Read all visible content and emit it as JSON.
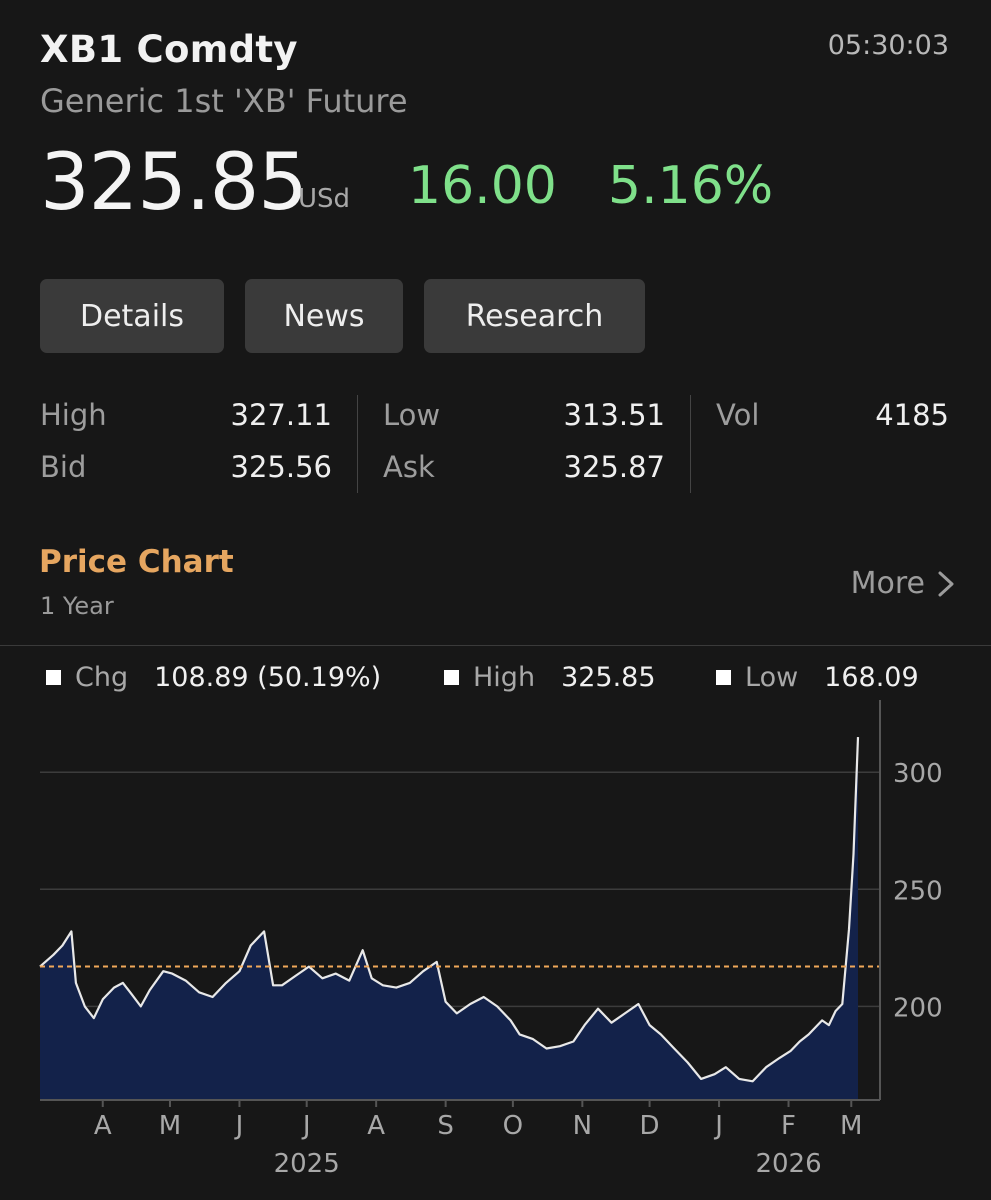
{
  "header": {
    "ticker": "XB1 Comdty",
    "name": "Generic 1st 'XB' Future",
    "time": "05:30:03"
  },
  "quote": {
    "last": "325.85",
    "currency": "USd",
    "net_change": "16.00",
    "pct_change": "5.16%",
    "change_color": "#7fe08a"
  },
  "tabs": [
    {
      "label": "Details"
    },
    {
      "label": "News"
    },
    {
      "label": "Research"
    }
  ],
  "stats": {
    "high_label": "High",
    "high": "327.11",
    "low_label": "Low",
    "low": "313.51",
    "vol_label": "Vol",
    "vol": "4185",
    "bid_label": "Bid",
    "bid": "325.56",
    "ask_label": "Ask",
    "ask": "325.87"
  },
  "price_chart": {
    "title": "Price Chart",
    "range": "1 Year",
    "more_label": "More",
    "more_icon": "chevron-right-icon",
    "accent_color": "#e6a660"
  },
  "legend": {
    "chg_label": "Chg",
    "chg_value": "108.89 (50.19%)",
    "high_label": "High",
    "high_value": "325.85",
    "low_label": "Low",
    "low_value": "168.09"
  },
  "chart_data": {
    "type": "area",
    "title": "",
    "xlabel": "",
    "ylabel": "",
    "ylim": [
      160,
      330
    ],
    "yticks": [
      200,
      250,
      300
    ],
    "reference_line": 217,
    "reference_color": "#f0a85a",
    "fill_color": "#13224a",
    "line_color": "#e8e8e8",
    "grid": true,
    "x_tick_labels": [
      "A",
      "M",
      "J",
      "J",
      "A",
      "S",
      "O",
      "N",
      "D",
      "J",
      "F",
      "M"
    ],
    "year_labels": [
      "2025",
      "2026"
    ],
    "x_start": "2025-03-04",
    "x_end": "2026-03-04",
    "x_ticks": [
      "2025-04-01",
      "2025-05-01",
      "2025-06-01",
      "2025-07-01",
      "2025-08-01",
      "2025-09-01",
      "2025-10-01",
      "2025-11-01",
      "2025-12-01",
      "2026-01-01",
      "2026-02-01",
      "2026-03-01"
    ],
    "year_ticks": [
      "2025-07-01",
      "2026-02-01"
    ],
    "series": [
      {
        "x": [
          "2025-03-04",
          "2025-03-10",
          "2025-03-14",
          "2025-03-18",
          "2025-03-20",
          "2025-03-24",
          "2025-03-28",
          "2025-04-01",
          "2025-04-06",
          "2025-04-10",
          "2025-04-14",
          "2025-04-18",
          "2025-04-22",
          "2025-04-28",
          "2025-05-02",
          "2025-05-08",
          "2025-05-14",
          "2025-05-20",
          "2025-05-26",
          "2025-06-01",
          "2025-06-06",
          "2025-06-12",
          "2025-06-16",
          "2025-06-20",
          "2025-06-26",
          "2025-07-02",
          "2025-07-08",
          "2025-07-14",
          "2025-07-20",
          "2025-07-26",
          "2025-07-30",
          "2025-08-04",
          "2025-08-10",
          "2025-08-16",
          "2025-08-22",
          "2025-08-28",
          "2025-09-01",
          "2025-09-06",
          "2025-09-12",
          "2025-09-18",
          "2025-09-24",
          "2025-09-30",
          "2025-10-04",
          "2025-10-10",
          "2025-10-16",
          "2025-10-22",
          "2025-10-28",
          "2025-11-02",
          "2025-11-08",
          "2025-11-14",
          "2025-11-20",
          "2025-11-26",
          "2025-12-01",
          "2025-12-06",
          "2025-12-12",
          "2025-12-18",
          "2025-12-24",
          "2025-12-30",
          "2026-01-04",
          "2026-01-10",
          "2026-01-16",
          "2026-01-22",
          "2026-01-28",
          "2026-02-02",
          "2026-02-06",
          "2026-02-10",
          "2026-02-13",
          "2026-02-16",
          "2026-02-19",
          "2026-02-22",
          "2026-02-25",
          "2026-02-28",
          "2026-03-02",
          "2026-03-04"
        ],
        "values": [
          217,
          222,
          226,
          232,
          210,
          200,
          195,
          203,
          208,
          210,
          205,
          200,
          207,
          215,
          214,
          211,
          206,
          204,
          210,
          215,
          226,
          232,
          209,
          209,
          213,
          217,
          212,
          214,
          211,
          224,
          212,
          209,
          208,
          210,
          215,
          219,
          202,
          197,
          201,
          204,
          200,
          194,
          188,
          186,
          182,
          183,
          185,
          192,
          199,
          193,
          197,
          201,
          192,
          188,
          182,
          176,
          169,
          171,
          174,
          169,
          168,
          174,
          178,
          181,
          185,
          188,
          191,
          194,
          192,
          198,
          201,
          233,
          265,
          315
        ],
        "_note": ""
      }
    ]
  }
}
